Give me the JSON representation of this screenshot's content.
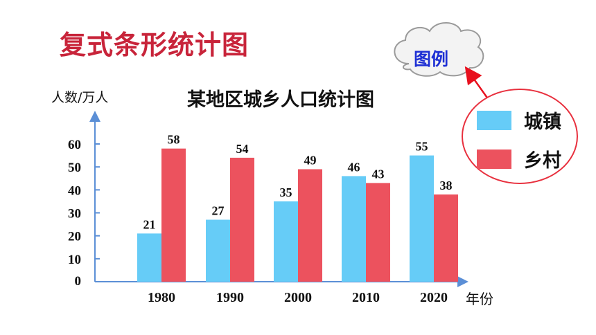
{
  "slide": {
    "title": "复式条形统计图"
  },
  "legend_callout": {
    "cloud_text": "图例",
    "items": [
      {
        "label": "城镇",
        "color": "#66ccf7"
      },
      {
        "label": "乡村",
        "color": "#ec525e"
      }
    ]
  },
  "chart_data": {
    "type": "bar",
    "title": "某地区城乡人口统计图",
    "xlabel": "年份",
    "ylabel": "人数/万人",
    "categories": [
      "1980",
      "1990",
      "2000",
      "2010",
      "2020"
    ],
    "series": [
      {
        "name": "城镇",
        "values": [
          21,
          27,
          35,
          46,
          55
        ],
        "color": "#66ccf7"
      },
      {
        "name": "乡村",
        "values": [
          58,
          54,
          49,
          43,
          38
        ],
        "color": "#ec525e"
      }
    ],
    "yticks": [
      0,
      10,
      20,
      30,
      40,
      50,
      60
    ],
    "ylim": [
      0,
      70
    ],
    "axis_color": "#5b8fd6",
    "grid": false,
    "legend": "right"
  }
}
